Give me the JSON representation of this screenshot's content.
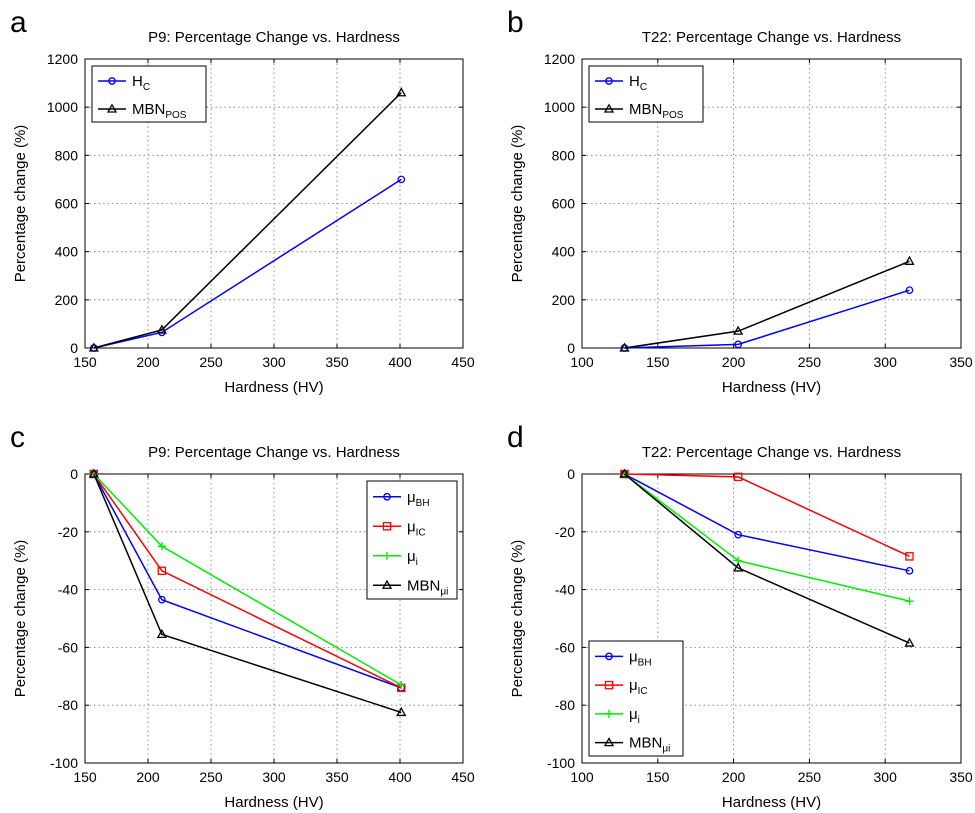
{
  "chart_data": [
    {
      "panel": "a",
      "type": "line",
      "title": "P9: Percentage Change  vs. Hardness",
      "xlabel": "Hardness (HV)",
      "ylabel": "Percentage change (%)",
      "xlim": [
        150,
        450
      ],
      "ylim": [
        0,
        1200
      ],
      "xticks": [
        150,
        200,
        250,
        300,
        350,
        400,
        450
      ],
      "yticks": [
        0,
        200,
        400,
        600,
        800,
        1000,
        1200
      ],
      "grid": true,
      "legend_position": "top-left",
      "series": [
        {
          "name": "H",
          "sub": "C",
          "color": "#0000ff",
          "marker": "circle",
          "x": [
            157,
            211,
            401
          ],
          "y": [
            0,
            65,
            700
          ]
        },
        {
          "name": "MBN",
          "sub": "POS",
          "color": "#000000",
          "marker": "triangle",
          "x": [
            157,
            211,
            401
          ],
          "y": [
            0,
            75,
            1060
          ]
        }
      ]
    },
    {
      "panel": "b",
      "type": "line",
      "title": "T22: Percentage Change  vs. Hardness",
      "xlabel": "Hardness (HV)",
      "ylabel": "Percentage change (%)",
      "xlim": [
        100,
        350
      ],
      "ylim": [
        0,
        1200
      ],
      "xticks": [
        100,
        150,
        200,
        250,
        300,
        350
      ],
      "yticks": [
        0,
        200,
        400,
        600,
        800,
        1000,
        1200
      ],
      "grid": true,
      "legend_position": "top-left",
      "series": [
        {
          "name": "H",
          "sub": "C",
          "color": "#0000ff",
          "marker": "circle",
          "x": [
            128,
            203,
            316
          ],
          "y": [
            0,
            15,
            240
          ]
        },
        {
          "name": "MBN",
          "sub": "POS",
          "color": "#000000",
          "marker": "triangle",
          "x": [
            128,
            203,
            316
          ],
          "y": [
            0,
            70,
            360
          ]
        }
      ]
    },
    {
      "panel": "c",
      "type": "line",
      "title": "P9: Percentage Change  vs. Hardness",
      "xlabel": "Hardness (HV)",
      "ylabel": "Percentage change (%)",
      "xlim": [
        150,
        450
      ],
      "ylim": [
        -100,
        0
      ],
      "xticks": [
        150,
        200,
        250,
        300,
        350,
        400,
        450
      ],
      "yticks": [
        0,
        -20,
        -40,
        -60,
        -80,
        -100
      ],
      "grid": true,
      "legend_position": "top-right",
      "series": [
        {
          "name": "μ",
          "sub": "BH",
          "color": "#0000ff",
          "marker": "circle",
          "x": [
            157,
            211,
            401
          ],
          "y": [
            0,
            -43.5,
            -74
          ]
        },
        {
          "name": "μ",
          "sub": "IC",
          "color": "#ff0000",
          "marker": "square",
          "x": [
            157,
            211,
            401
          ],
          "y": [
            0,
            -33.5,
            -74
          ]
        },
        {
          "name": "μ",
          "sub": "i",
          "color": "#00ee00",
          "marker": "plus",
          "x": [
            157,
            211,
            401
          ],
          "y": [
            0,
            -25,
            -73
          ]
        },
        {
          "name": "MBN",
          "sub": "μi",
          "color": "#000000",
          "marker": "triangle",
          "x": [
            157,
            211,
            401
          ],
          "y": [
            0,
            -55.5,
            -82.5
          ]
        }
      ]
    },
    {
      "panel": "d",
      "type": "line",
      "title": "T22: Percentage Change  vs. Hardness",
      "xlabel": "Hardness (HV)",
      "ylabel": "Percentage change (%)",
      "xlim": [
        100,
        350
      ],
      "ylim": [
        -100,
        0
      ],
      "xticks": [
        100,
        150,
        200,
        250,
        300,
        350
      ],
      "yticks": [
        0,
        -20,
        -40,
        -60,
        -80,
        -100
      ],
      "grid": true,
      "legend_position": "bottom-left",
      "series": [
        {
          "name": "μ",
          "sub": "BH",
          "color": "#0000ff",
          "marker": "circle",
          "x": [
            128,
            203,
            316
          ],
          "y": [
            0,
            -21,
            -33.5
          ]
        },
        {
          "name": "μ",
          "sub": "IC",
          "color": "#ff0000",
          "marker": "square",
          "x": [
            128,
            203,
            316
          ],
          "y": [
            0,
            -1,
            -28.5
          ]
        },
        {
          "name": "μ",
          "sub": "i",
          "color": "#00ee00",
          "marker": "plus",
          "x": [
            128,
            203,
            316
          ],
          "y": [
            0,
            -30,
            -44
          ]
        },
        {
          "name": "MBN",
          "sub": "μi",
          "color": "#000000",
          "marker": "triangle",
          "x": [
            128,
            203,
            316
          ],
          "y": [
            0,
            -32.5,
            -58.5
          ]
        }
      ]
    }
  ]
}
